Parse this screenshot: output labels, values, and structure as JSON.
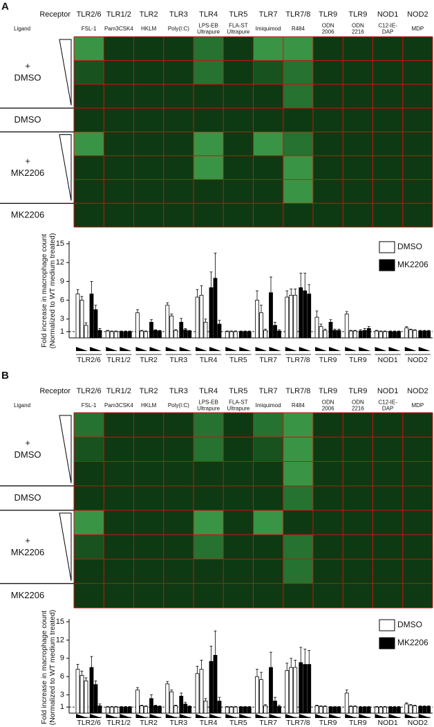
{
  "panels": [
    {
      "label": "A",
      "receptor_label": "Receptor",
      "ligand_label": "Ligand",
      "receptors": [
        "TLR2/6",
        "TLR1/2",
        "TLR2",
        "TLR3",
        "TLR4",
        "TLR5",
        "TLR7",
        "TLR7/8",
        "TLR9",
        "TLR9",
        "NOD1",
        "NOD2"
      ],
      "ligands": [
        [
          "FSL-1"
        ],
        [
          "Pam3CSK4"
        ],
        [
          "HKLM"
        ],
        [
          "Poly(I:C)"
        ],
        [
          "LPS-EB",
          "Ultrapure"
        ],
        [
          "FLA-ST",
          "Ultrapure"
        ],
        [
          "Imiquimod"
        ],
        [
          "R484"
        ],
        [
          "ODN",
          "2006"
        ],
        [
          "ODN",
          "2216"
        ],
        [
          "C12-IE-",
          "DAP"
        ],
        [
          "MDP"
        ]
      ],
      "row_labels": [
        [
          "+",
          "DMSO"
        ],
        [
          "DMSO"
        ],
        [
          "+",
          "MK2206"
        ],
        [
          "MK2206"
        ]
      ]
    },
    {
      "label": "B",
      "receptor_label": "Receptor",
      "ligand_label": "Ligand",
      "receptors": [
        "TLR2/6",
        "TLR1/2",
        "TLR2",
        "TLR3",
        "TLR4",
        "TLR5",
        "TLR7",
        "TLR7/8",
        "TLR9",
        "TLR9",
        "NOD1",
        "NOD2"
      ],
      "ligands": [
        [
          "FSL-1"
        ],
        [
          "Pam3CSK4"
        ],
        [
          "HKLM"
        ],
        [
          "Poly(I:C)"
        ],
        [
          "LPS-EB",
          "Ultrapure"
        ],
        [
          "FLA-ST",
          "Ultrapure"
        ],
        [
          "Imiquimod"
        ],
        [
          "R484"
        ],
        [
          "ODN",
          "2006"
        ],
        [
          "ODN",
          "2216"
        ],
        [
          "C12-IE-",
          "DAP"
        ],
        [
          "MDP"
        ]
      ],
      "row_labels": [
        [
          "+",
          "DMSO"
        ],
        [
          "DMSO"
        ],
        [
          "+",
          "MK2206"
        ],
        [
          "MK2206"
        ]
      ]
    }
  ],
  "chart_data": [
    {
      "type": "bar",
      "ylabel": [
        "Fold increase in macrophage count",
        "(Normalized to WT medium treated)"
      ],
      "categories": [
        "TLR2/6",
        "TLR1/2",
        "TLR2",
        "TLR3",
        "TLR4",
        "TLR5",
        "TLR7",
        "TLR7/8",
        "TLR9",
        "TLR9",
        "NOD1",
        "NOD2"
      ],
      "ylim": [
        0,
        15
      ],
      "yticks": [
        1,
        3,
        6,
        9,
        12,
        15
      ],
      "series": [
        {
          "name": "DMSO",
          "color": "#ffffff",
          "values": [
            [
              7,
              6,
              2
            ],
            [
              1.1,
              1,
              1
            ],
            [
              4,
              1.1,
              1
            ],
            [
              5.2,
              3.5,
              1.2
            ],
            [
              6.5,
              6.8,
              2.5
            ],
            [
              1,
              1,
              1
            ],
            [
              6,
              4,
              1.2
            ],
            [
              6.5,
              6.8,
              6.8
            ],
            [
              3.3,
              1.8,
              1.2
            ],
            [
              3.8,
              1.1,
              1.1
            ],
            [
              1.1,
              1,
              1
            ],
            [
              1.6,
              1.3,
              1.2
            ]
          ],
          "errors": [
            [
              0.7,
              0.6,
              0.4
            ],
            [
              0.1,
              0.1,
              0.1
            ],
            [
              0.5,
              0.1,
              0.1
            ],
            [
              0.4,
              0.3,
              0.1
            ],
            [
              1.2,
              1.5,
              0.5
            ],
            [
              0.1,
              0.1,
              0.1
            ],
            [
              1.5,
              1.2,
              0.2
            ],
            [
              1,
              1,
              1
            ],
            [
              1,
              0.4,
              0.2
            ],
            [
              0.4,
              0.1,
              0.1
            ],
            [
              0.1,
              0.1,
              0.1
            ],
            [
              0.2,
              0.1,
              0.1
            ]
          ]
        },
        {
          "name": "MK2206",
          "color": "#000000",
          "values": [
            [
              7,
              4.5,
              1.2
            ],
            [
              1,
              1,
              1
            ],
            [
              2.5,
              1.2,
              1.1
            ],
            [
              2.5,
              1.3,
              1.1
            ],
            [
              8,
              9.5,
              2.2
            ],
            [
              1,
              1,
              1
            ],
            [
              7.2,
              2,
              1.1
            ],
            [
              8,
              7.5,
              7
            ],
            [
              2.5,
              1.2,
              1.2
            ],
            [
              1.1,
              1.2,
              1.5
            ],
            [
              1,
              1,
              1
            ],
            [
              1.1,
              1.1,
              1.1
            ]
          ],
          "errors": [
            [
              2,
              0.7,
              0.3
            ],
            [
              0.1,
              0.1,
              0.1
            ],
            [
              0.4,
              0.1,
              0.1
            ],
            [
              0.6,
              0.2,
              0.1
            ],
            [
              2.5,
              4,
              0.6
            ],
            [
              0.1,
              0.1,
              0.1
            ],
            [
              2.5,
              0.5,
              0.2
            ],
            [
              2.3,
              2.8,
              1.5
            ],
            [
              0.4,
              0.2,
              0.2
            ],
            [
              0.2,
              0.3,
              0.3
            ],
            [
              0.1,
              0.1,
              0.1
            ],
            [
              0.1,
              0.1,
              0.1
            ]
          ]
        }
      ]
    },
    {
      "type": "bar",
      "ylabel": [
        "Fold increase in macrophage count",
        "(Normalized to WT medium treated)"
      ],
      "categories": [
        "TLR2/6",
        "TLR1/2",
        "TLR2",
        "TLR3",
        "TLR4",
        "TLR5",
        "TLR7",
        "TLR7/8",
        "TLR9",
        "TLR9",
        "NOD1",
        "NOD2"
      ],
      "ylim": [
        0,
        15
      ],
      "yticks": [
        1,
        3,
        6,
        9,
        12,
        15
      ],
      "series": [
        {
          "name": "DMSO",
          "color": "#ffffff",
          "values": [
            [
              7.2,
              6.2,
              5.3
            ],
            [
              1,
              1,
              1
            ],
            [
              3.8,
              1.2,
              1.1
            ],
            [
              4.8,
              3.5,
              1.2
            ],
            [
              6.5,
              7.2,
              2
            ],
            [
              1,
              1,
              1
            ],
            [
              6,
              5.5,
              1.2
            ],
            [
              7,
              7.5,
              7.5
            ],
            [
              1.2,
              1.1,
              1.1
            ],
            [
              3.3,
              1.1,
              1.1
            ],
            [
              1,
              1,
              1
            ],
            [
              1.5,
              1.3,
              1.2
            ]
          ],
          "errors": [
            [
              0.8,
              0.7,
              0.5
            ],
            [
              0.1,
              0.1,
              0.1
            ],
            [
              0.4,
              0.1,
              0.1
            ],
            [
              0.4,
              0.3,
              0.1
            ],
            [
              1.2,
              1.5,
              0.4
            ],
            [
              0.1,
              0.1,
              0.1
            ],
            [
              1.2,
              1.2,
              0.2
            ],
            [
              1.2,
              1.5,
              1.2
            ],
            [
              0.1,
              0.1,
              0.1
            ],
            [
              0.5,
              0.1,
              0.1
            ],
            [
              0.1,
              0.1,
              0.1
            ],
            [
              0.2,
              0.1,
              0.1
            ]
          ]
        },
        {
          "name": "MK2206",
          "color": "#000000",
          "values": [
            [
              7.5,
              4.7,
              1.2
            ],
            [
              1,
              1,
              1
            ],
            [
              2.4,
              1.2,
              1.1
            ],
            [
              2.8,
              1.5,
              1.1
            ],
            [
              8.5,
              9.5,
              2
            ],
            [
              1,
              1,
              1
            ],
            [
              7.5,
              2,
              1.1
            ],
            [
              8.3,
              8,
              8
            ],
            [
              1,
              1,
              1
            ],
            [
              1,
              1,
              1
            ],
            [
              1,
              1,
              1
            ],
            [
              1.1,
              1.1,
              1.1
            ]
          ],
          "errors": [
            [
              1.8,
              0.6,
              0.3
            ],
            [
              0.1,
              0.1,
              0.1
            ],
            [
              0.6,
              0.1,
              0.1
            ],
            [
              0.5,
              0.3,
              0.1
            ],
            [
              2.5,
              4,
              0.6
            ],
            [
              0.1,
              0.1,
              0.1
            ],
            [
              2.5,
              0.6,
              0.2
            ],
            [
              2.5,
              2.5,
              2.3
            ],
            [
              0.1,
              0.1,
              0.1
            ],
            [
              0.1,
              0.1,
              0.1
            ],
            [
              0.1,
              0.1,
              0.1
            ],
            [
              0.1,
              0.1,
              0.1
            ]
          ]
        }
      ]
    }
  ]
}
